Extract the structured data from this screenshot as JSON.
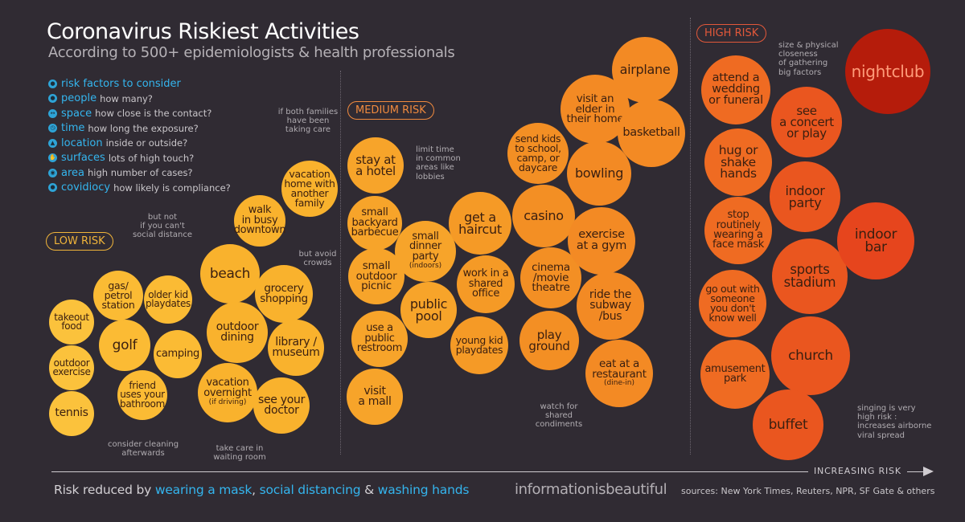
{
  "title": "Coronavirus Riskiest Activities",
  "subtitle": "According to 500+ epidemiologists & health professionals",
  "risk_factors": {
    "heading": "risk factors to consider",
    "items": [
      {
        "name": "people",
        "desc": "how many?",
        "icon": "people-icon"
      },
      {
        "name": "space",
        "desc": "how close is the contact?",
        "icon": "space-icon"
      },
      {
        "name": "time",
        "desc": "how long the exposure?",
        "icon": "clock-icon"
      },
      {
        "name": "location",
        "desc": "inside or outside?",
        "icon": "location-icon"
      },
      {
        "name": "surfaces",
        "desc": "lots of high touch?",
        "icon": "surfaces-icon"
      },
      {
        "name": "area",
        "desc": "high number of cases?",
        "icon": "area-icon"
      },
      {
        "name": "covidiocy",
        "desc": "how likely is compliance?",
        "icon": "head-icon"
      }
    ]
  },
  "categories": {
    "low": "LOW RISK",
    "medium": "MEDIUM RISK",
    "high": "HIGH RISK"
  },
  "colors": {
    "low": "#f8b22f",
    "medium": "#f39022",
    "high": "#ec5b1e",
    "extreme": "#b51c0b",
    "accent": "#34b5ee",
    "background": "#302b33"
  },
  "activities": [
    {
      "id": "takeout-food",
      "label": "takeout\nfood",
      "color": "#fbc23c"
    },
    {
      "id": "outdoor-exercise",
      "label": "outdoor\nexercise",
      "color": "#fbc23c"
    },
    {
      "id": "tennis",
      "label": "tennis",
      "color": "#fbc23c"
    },
    {
      "id": "gas-petrol-station",
      "label": "gas/\npetrol\nstation",
      "color": "#fbbb34"
    },
    {
      "id": "older-kid-playdates",
      "label": "older kid\nplaydates",
      "color": "#fbbb34"
    },
    {
      "id": "golf",
      "label": "golf",
      "color": "#fbbb34"
    },
    {
      "id": "camping",
      "label": "camping",
      "color": "#fbbb34"
    },
    {
      "id": "friend-bathroom",
      "label": "friend\nuses your\nbathroom",
      "color": "#fbbb34"
    },
    {
      "id": "beach",
      "label": "beach",
      "color": "#f9b22d"
    },
    {
      "id": "walk-downtown",
      "label": "walk\nin busy\ndowntown",
      "color": "#f9b22d"
    },
    {
      "id": "grocery-shopping",
      "label": "grocery\nshopping",
      "color": "#f9b22d"
    },
    {
      "id": "outdoor-dining",
      "label": "outdoor\ndining",
      "color": "#f9b22d"
    },
    {
      "id": "library-museum",
      "label": "library /\nmuseum",
      "color": "#f9b22d"
    },
    {
      "id": "vacation-overnight",
      "label": "vacation\novernight",
      "sub": "(if driving)",
      "color": "#f9b22d"
    },
    {
      "id": "see-your-doctor",
      "label": "see your\ndoctor",
      "color": "#f9b22d"
    },
    {
      "id": "vacation-home",
      "label": "vacation\nhome with\nanother\nfamily",
      "color": "#f9b22d"
    },
    {
      "id": "stay-at-hotel",
      "label": "stay at\na hotel",
      "color": "#f7a42a"
    },
    {
      "id": "backyard-barbecue",
      "label": "small\nbackyard\nbarbecue",
      "color": "#f7a42a"
    },
    {
      "id": "outdoor-picnic",
      "label": "small\noutdoor\npicnic",
      "color": "#f7a42a"
    },
    {
      "id": "public-restroom",
      "label": "use a\npublic\nrestroom",
      "color": "#f7a42a"
    },
    {
      "id": "visit-a-mall",
      "label": "visit\na mall",
      "color": "#f7a42a"
    },
    {
      "id": "small-dinner-party",
      "label": "small\ndinner\nparty",
      "sub": "(indoors)",
      "color": "#f7a42a"
    },
    {
      "id": "public-pool",
      "label": "public\npool",
      "color": "#f7a42a"
    },
    {
      "id": "get-a-haircut",
      "label": "get a\nhaircut",
      "color": "#f59a26"
    },
    {
      "id": "shared-office",
      "label": "work in a\nshared\noffice",
      "color": "#f59a26"
    },
    {
      "id": "young-kid-playdates",
      "label": "young kid\nplaydates",
      "color": "#f59a26"
    },
    {
      "id": "send-kids-to-school",
      "label": "send kids\nto school,\ncamp, or\ndaycare",
      "color": "#f38f24"
    },
    {
      "id": "casino",
      "label": "casino",
      "color": "#f38f24"
    },
    {
      "id": "cinema-theatre",
      "label": "cinema\n/movie\ntheatre",
      "color": "#f38f24"
    },
    {
      "id": "play-ground",
      "label": "play\nground",
      "color": "#f38f24"
    },
    {
      "id": "visit-an-elder",
      "label": "visit an\nelder in\ntheir home",
      "color": "#f38a24"
    },
    {
      "id": "airplane",
      "label": "airplane",
      "color": "#f38a24"
    },
    {
      "id": "basketball",
      "label": "basketball",
      "color": "#f38a24"
    },
    {
      "id": "bowling",
      "label": "bowling",
      "color": "#f38a24"
    },
    {
      "id": "exercise-at-gym",
      "label": "exercise\nat a gym",
      "color": "#f38a24"
    },
    {
      "id": "ride-subway-bus",
      "label": "ride the\nsubway\n/bus",
      "color": "#f38a24"
    },
    {
      "id": "eat-at-restaurant",
      "label": "eat at a\nrestaurant",
      "sub": "(dine-in)",
      "color": "#f38a24"
    },
    {
      "id": "attend-wedding-funeral",
      "label": "attend a\nwedding\nor funeral",
      "color": "#ef6b22"
    },
    {
      "id": "hug-shake-hands",
      "label": "hug or\nshake\nhands",
      "color": "#ef6b22"
    },
    {
      "id": "stop-wearing-mask",
      "label": "stop\nroutinely\nwearing a\nface mask",
      "color": "#ef6b22"
    },
    {
      "id": "someone-dont-know",
      "label": "go out with\nsomeone\nyou don't\nknow well",
      "color": "#ef6b22"
    },
    {
      "id": "amusement-park",
      "label": "amusement\npark",
      "color": "#ef6b22"
    },
    {
      "id": "see-concert-play",
      "label": "see\na concert\nor play",
      "color": "#ea561f"
    },
    {
      "id": "indoor-party",
      "label": "indoor\nparty",
      "color": "#ea561f"
    },
    {
      "id": "sports-stadium",
      "label": "sports\nstadium",
      "color": "#ea561f"
    },
    {
      "id": "church",
      "label": "church",
      "color": "#ea561f"
    },
    {
      "id": "buffet",
      "label": "buffet",
      "color": "#ea561f"
    },
    {
      "id": "indoor-bar",
      "label": "indoor\nbar",
      "color": "#e6451d"
    },
    {
      "id": "nightclub",
      "label": "nightclub",
      "color": "#b51c0b"
    }
  ],
  "notes": {
    "both-families": "if both families\nhave been\ntaking care",
    "not-if-distance": "but not\nif you can't\nsocial distance",
    "avoid-crowds": "but avoid\ncrowds",
    "limit-time": "limit time\nin common\nareas like\nlobbies",
    "cleaning": "consider cleaning\nafterwards",
    "waiting-room": "take care in\nwaiting room",
    "condiments": "watch for\nshared\ncondiments",
    "gathering-size": "size & physical\ncloseness\nof gathering\nbig factors",
    "singing": "singing is very\nhigh risk :\nincreases airborne\nviral spread"
  },
  "axis_label": "INCREASING RISK",
  "footer": {
    "prefix": "Risk reduced by ",
    "mask": "wearing a mask",
    "sep1": ", ",
    "distancing": "social distancing",
    "sep2": " & ",
    "washing": "washing hands"
  },
  "brand": "informationisbeautiful",
  "sources": "sources: New York Times, Reuters, NPR, SF Gate & others"
}
